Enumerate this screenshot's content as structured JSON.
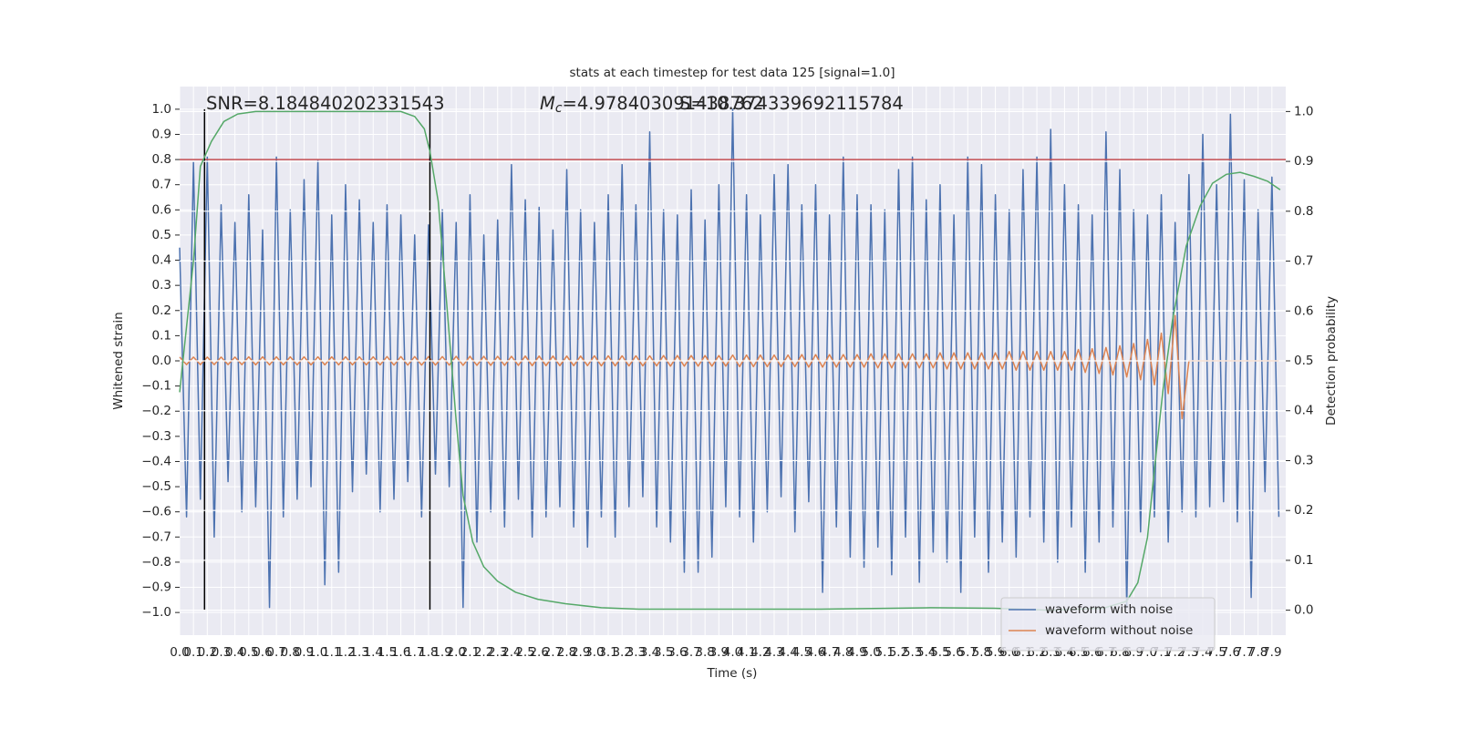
{
  "chart_data": {
    "type": "line",
    "title": "stats at each timestep for test data 125 [signal=1.0]",
    "x_label": "Time (s)",
    "y_label": "Whitened strain",
    "y2_label": "Detection probability",
    "annotations": [
      {
        "text": "SNR=8.184840202331543"
      },
      {
        "symbol": "M",
        "subscript": "c",
        "text": "=4.978403091438762"
      },
      {
        "text": "S=10.374339692115784"
      }
    ],
    "xlim": [
      0,
      8
    ],
    "ylim": [
      -1.09,
      1.09
    ],
    "y2lim": [
      -0.05,
      1.05
    ],
    "grid": true,
    "legend": "lower right",
    "xticks": [
      {
        "value": 0,
        "label": "0.0"
      },
      0.1,
      0.2,
      0.3,
      0.4,
      0.5,
      0.6,
      0.7,
      0.8,
      0.9,
      {
        "value": 1,
        "label": "1.0"
      },
      1.1,
      1.2,
      1.3,
      1.4,
      1.5,
      1.6,
      1.7,
      1.8,
      1.9,
      {
        "value": 2,
        "label": "2.0"
      },
      2.1,
      2.2,
      2.3,
      2.4,
      2.5,
      2.6,
      2.7,
      2.8,
      2.9,
      {
        "value": 3,
        "label": "3.0"
      },
      3.1,
      3.2,
      3.3,
      3.4,
      3.5,
      3.6,
      3.7,
      3.8,
      3.9,
      {
        "value": 4,
        "label": "4.0"
      },
      4.1,
      4.2,
      4.3,
      4.4,
      4.5,
      4.6,
      4.7,
      4.8,
      4.9,
      {
        "value": 5,
        "label": "5.0"
      },
      5.1,
      5.2,
      5.3,
      5.4,
      5.5,
      5.6,
      5.7,
      5.8,
      5.9,
      {
        "value": 6,
        "label": "6.0"
      },
      6.1,
      6.2,
      6.3,
      6.4,
      6.5,
      6.6,
      6.7,
      6.8,
      6.9,
      {
        "value": 7,
        "label": "7.0"
      },
      7.1,
      7.2,
      7.3,
      7.4,
      7.5,
      7.6,
      7.7,
      7.8,
      7.9
    ],
    "yticks": [
      {
        "value": -1,
        "label": "−1.0"
      },
      {
        "value": -0.9,
        "label": "−0.9"
      },
      {
        "value": -0.8,
        "label": "−0.8"
      },
      {
        "value": -0.7,
        "label": "−0.7"
      },
      {
        "value": -0.6,
        "label": "−0.6"
      },
      {
        "value": -0.5,
        "label": "−0.5"
      },
      {
        "value": -0.4,
        "label": "−0.4"
      },
      {
        "value": -0.3,
        "label": "−0.3"
      },
      {
        "value": -0.2,
        "label": "−0.2"
      },
      {
        "value": -0.1,
        "label": "−0.1"
      },
      {
        "value": 0,
        "label": "0.0"
      },
      0.1,
      0.2,
      0.3,
      0.4,
      0.5,
      0.6,
      0.7,
      0.8,
      0.9,
      {
        "value": 1,
        "label": "1.0"
      }
    ],
    "y2ticks": [
      {
        "value": 0,
        "label": "0.0"
      },
      0.1,
      0.2,
      0.3,
      0.4,
      0.5,
      0.6,
      0.7,
      0.8,
      0.9,
      {
        "value": 1,
        "label": "1.0"
      }
    ],
    "hline": {
      "y": 0.8,
      "color": "#c44e52"
    },
    "vlines": {
      "x": [
        0.18,
        1.81
      ],
      "ymin": -0.99,
      "ymax": 1.0,
      "color": "#000000"
    },
    "x": [
      0,
      0.05,
      0.1,
      0.15,
      0.2,
      0.25,
      0.3,
      0.35,
      0.4,
      0.45,
      0.5,
      0.55,
      0.6,
      0.65,
      0.7,
      0.75,
      0.8,
      0.85,
      0.9,
      0.95,
      1,
      1.05,
      1.1,
      1.15,
      1.2,
      1.25,
      1.3,
      1.35,
      1.4,
      1.45,
      1.5,
      1.55,
      1.6,
      1.65,
      1.7,
      1.75,
      1.8,
      1.85,
      1.9,
      1.95,
      2,
      2.05,
      2.1,
      2.15,
      2.2,
      2.25,
      2.3,
      2.35,
      2.4,
      2.45,
      2.5,
      2.55,
      2.6,
      2.65,
      2.7,
      2.75,
      2.8,
      2.85,
      2.9,
      2.95,
      3,
      3.05,
      3.1,
      3.15,
      3.2,
      3.25,
      3.3,
      3.35,
      3.4,
      3.45,
      3.5,
      3.55,
      3.6,
      3.65,
      3.7,
      3.75,
      3.8,
      3.85,
      3.9,
      3.95,
      4,
      4.05,
      4.1,
      4.15,
      4.2,
      4.25,
      4.3,
      4.35,
      4.4,
      4.45,
      4.5,
      4.55,
      4.6,
      4.65,
      4.7,
      4.75,
      4.8,
      4.85,
      4.9,
      4.95,
      5,
      5.05,
      5.1,
      5.15,
      5.2,
      5.25,
      5.3,
      5.35,
      5.4,
      5.45,
      5.5,
      5.55,
      5.6,
      5.65,
      5.7,
      5.75,
      5.8,
      5.85,
      5.9,
      5.95,
      6,
      6.05,
      6.1,
      6.15,
      6.2,
      6.25,
      6.3,
      6.35,
      6.4,
      6.45,
      6.5,
      6.55,
      6.6,
      6.65,
      6.7,
      6.75,
      6.8,
      6.85,
      6.9,
      6.95,
      7,
      7.05,
      7.1,
      7.15,
      7.2,
      7.25,
      7.3,
      7.35,
      7.4,
      7.45,
      7.5,
      7.55,
      7.6,
      7.65,
      7.7,
      7.75,
      7.8,
      7.85,
      7.9,
      7.95
    ],
    "series": [
      {
        "name": "waveform with noise",
        "color": "#4c72b0",
        "values": [
          0.45,
          -0.62,
          0.79,
          -0.55,
          0.81,
          -0.7,
          0.62,
          -0.48,
          0.55,
          -0.6,
          0.66,
          -0.58,
          0.52,
          -0.98,
          0.81,
          -0.62,
          0.6,
          -0.55,
          0.72,
          -0.5,
          0.8,
          -0.89,
          0.58,
          -0.84,
          0.7,
          -0.52,
          0.64,
          -0.45,
          0.55,
          -0.6,
          0.62,
          -0.55,
          0.58,
          -0.48,
          0.5,
          -0.62,
          0.54,
          -0.45,
          0.6,
          -0.5,
          0.55,
          -0.98,
          0.66,
          -0.72,
          0.5,
          -0.6,
          0.56,
          -0.66,
          0.78,
          -0.55,
          0.64,
          -0.7,
          0.61,
          -0.62,
          0.52,
          -0.58,
          0.76,
          -0.66,
          0.6,
          -0.74,
          0.55,
          -0.62,
          0.66,
          -0.7,
          0.78,
          -0.58,
          0.62,
          -0.54,
          0.91,
          -0.66,
          0.6,
          -0.72,
          0.58,
          -0.84,
          0.68,
          -0.84,
          0.56,
          -0.78,
          0.7,
          -0.58,
          1.0,
          -0.62,
          0.66,
          -0.72,
          0.58,
          -0.6,
          0.74,
          -0.54,
          0.78,
          -0.68,
          0.62,
          -0.56,
          0.7,
          -0.92,
          0.58,
          -0.66,
          0.81,
          -0.78,
          0.66,
          -0.82,
          0.62,
          -0.74,
          0.6,
          -0.85,
          0.76,
          -0.7,
          0.81,
          -0.88,
          0.64,
          -0.76,
          0.7,
          -0.8,
          0.58,
          -0.92,
          0.81,
          -0.7,
          0.78,
          -0.84,
          0.66,
          -0.72,
          0.6,
          -0.78,
          0.76,
          -0.62,
          0.81,
          -0.72,
          0.92,
          -0.8,
          0.7,
          -0.66,
          0.62,
          -0.84,
          0.58,
          -0.72,
          0.91,
          -0.66,
          0.76,
          -0.98,
          0.6,
          -0.68,
          0.58,
          -0.62,
          0.66,
          -0.72,
          0.55,
          -0.6,
          0.74,
          -0.62,
          0.9,
          -0.58,
          0.7,
          -0.56,
          0.98,
          -0.64,
          0.72,
          -0.94,
          0.6,
          -0.52,
          0.73,
          -0.62
        ]
      },
      {
        "name": "waveform without noise",
        "color": "#dd8452",
        "values": [
          0.015,
          -0.015,
          0.015,
          -0.015,
          0.015,
          -0.015,
          0.015,
          -0.015,
          0.015,
          -0.015,
          0.016,
          -0.016,
          0.016,
          -0.016,
          0.016,
          -0.016,
          0.016,
          -0.016,
          0.016,
          -0.016,
          0.016,
          -0.016,
          0.016,
          -0.016,
          0.016,
          -0.016,
          0.016,
          -0.016,
          0.016,
          -0.016,
          0.017,
          -0.017,
          0.017,
          -0.017,
          0.017,
          -0.017,
          0.017,
          -0.017,
          0.017,
          -0.017,
          0.018,
          -0.018,
          0.018,
          -0.018,
          0.018,
          -0.018,
          0.018,
          -0.018,
          0.018,
          -0.018,
          0.019,
          -0.019,
          0.019,
          -0.019,
          0.019,
          -0.019,
          0.019,
          -0.019,
          0.019,
          -0.019,
          0.02,
          -0.02,
          0.02,
          -0.02,
          0.02,
          -0.02,
          0.02,
          -0.02,
          0.02,
          -0.02,
          0.021,
          -0.021,
          0.021,
          -0.021,
          0.021,
          -0.021,
          0.021,
          -0.021,
          0.021,
          -0.021,
          0.023,
          -0.023,
          0.023,
          -0.023,
          0.023,
          -0.023,
          0.023,
          -0.023,
          0.023,
          -0.023,
          0.025,
          -0.025,
          0.025,
          -0.025,
          0.025,
          -0.025,
          0.025,
          -0.025,
          0.025,
          -0.025,
          0.028,
          -0.028,
          0.028,
          -0.028,
          0.028,
          -0.028,
          0.028,
          -0.028,
          0.028,
          -0.028,
          0.032,
          -0.032,
          0.032,
          -0.032,
          0.032,
          -0.032,
          0.032,
          -0.032,
          0.032,
          -0.032,
          0.037,
          -0.037,
          0.037,
          -0.037,
          0.037,
          -0.037,
          0.037,
          -0.037,
          0.037,
          -0.037,
          0.045,
          -0.046,
          0.048,
          -0.05,
          0.053,
          -0.056,
          0.06,
          -0.064,
          0.069,
          -0.075,
          0.085,
          -0.095,
          0.11,
          -0.13,
          0.18,
          -0.23,
          0,
          0,
          0,
          0,
          0,
          0,
          0,
          0,
          0,
          0,
          0,
          0,
          0,
          0
        ]
      },
      {
        "color": "#55a868",
        "axis": "y2",
        "x": [
          0,
          0.1,
          0.15,
          0.23,
          0.32,
          0.42,
          0.55,
          1.6,
          1.7,
          1.77,
          1.81,
          1.87,
          1.93,
          2,
          2.05,
          2.12,
          2.2,
          2.3,
          2.43,
          2.59,
          2.79,
          3.05,
          3.32,
          4.64,
          5.43,
          5.89,
          6.29,
          6.68,
          6.85,
          6.93,
          7,
          7.04,
          7.11,
          7.18,
          7.28,
          7.38,
          7.47,
          7.57,
          7.67,
          7.77,
          7.87,
          7.96
        ],
        "values": [
          0.437,
          0.7,
          0.89,
          0.94,
          0.98,
          0.995,
          1.0,
          1.0,
          0.99,
          0.965,
          0.92,
          0.82,
          0.62,
          0.38,
          0.23,
          0.137,
          0.087,
          0.058,
          0.036,
          0.022,
          0.013,
          0.005,
          0.002,
          0.002,
          0.005,
          0.004,
          0.0,
          0.004,
          0.018,
          0.055,
          0.146,
          0.255,
          0.437,
          0.58,
          0.73,
          0.81,
          0.856,
          0.874,
          0.878,
          0.87,
          0.86,
          0.843
        ]
      }
    ]
  }
}
